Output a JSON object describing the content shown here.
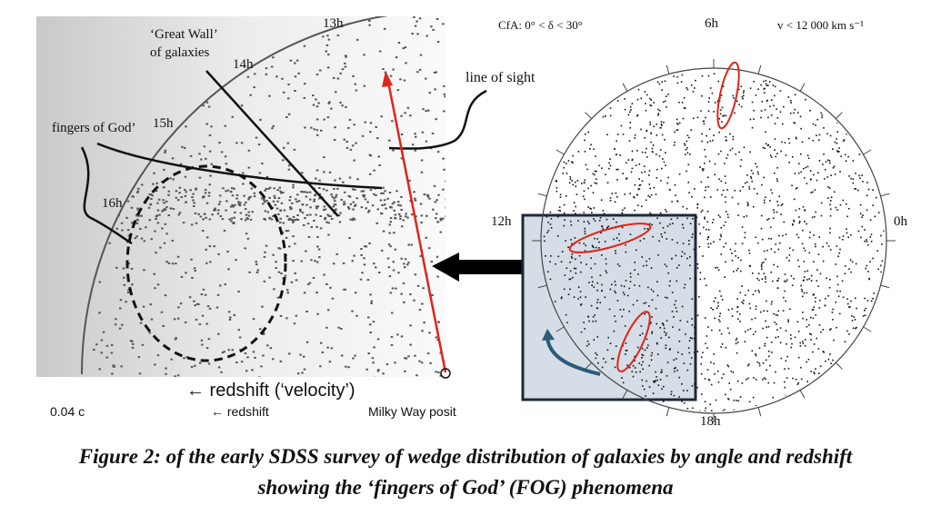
{
  "left_panel": {
    "hour_labels": [
      "13h",
      "14h",
      "15h",
      "16h"
    ],
    "annotations": {
      "great_wall": [
        "‘Great Wall’",
        "of galaxies"
      ],
      "fingers_of_god": "fingers of God’",
      "line_of_sight": "line of sight"
    },
    "axis_title": "← redshift (‘velocity’)",
    "axis_left": "0.04 c",
    "axis_mid": "← redshift",
    "axis_right": "Milky Way posit"
  },
  "right_panel": {
    "header_left": "CfA:  0° < δ < 30°",
    "header_right": "v < 12 000  km s⁻¹",
    "hour_labels": {
      "top": "6h",
      "left": "12h",
      "right": "0h",
      "bottom": "18h"
    }
  },
  "colors": {
    "highlight": "#e0241b",
    "box_fill": "#d5dde6",
    "box_border": "#1e2a38",
    "curve_arrow": "#2a5a7a"
  },
  "caption": {
    "line1": "Figure 2:  of the early SDSS survey of wedge distribution of galaxies by angle and redshift",
    "line2": "showing the ‘fingers of God’ (FOG) phenomena"
  }
}
